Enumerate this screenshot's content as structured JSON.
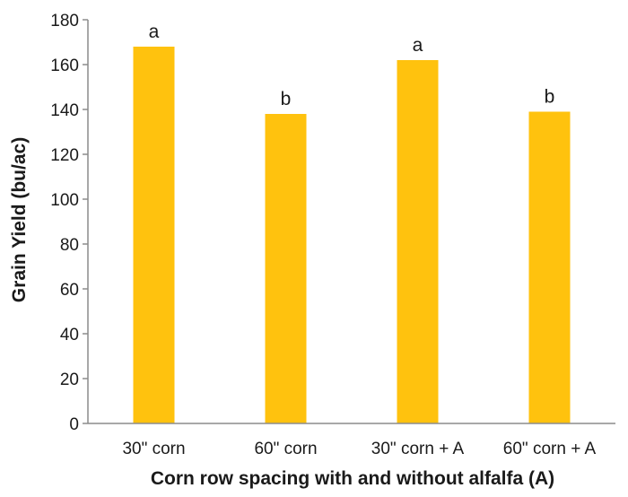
{
  "chart_data": {
    "type": "bar",
    "title": "",
    "xlabel": "Corn row spacing with and without alfalfa (A)",
    "ylabel": "Grain Yield (bu/ac)",
    "categories": [
      "30\" corn",
      "60\" corn",
      "30\" corn + A",
      "60\" corn + A"
    ],
    "values": [
      168,
      138,
      162,
      139
    ],
    "data_labels": [
      "a",
      "b",
      "a",
      "b"
    ],
    "ylim": [
      0,
      180
    ],
    "yticks": [
      0,
      20,
      40,
      60,
      80,
      100,
      120,
      140,
      160,
      180
    ],
    "grid": false,
    "legend": "none",
    "bar_color": "#FFC20E",
    "axis_color": "#8c8c8c"
  }
}
